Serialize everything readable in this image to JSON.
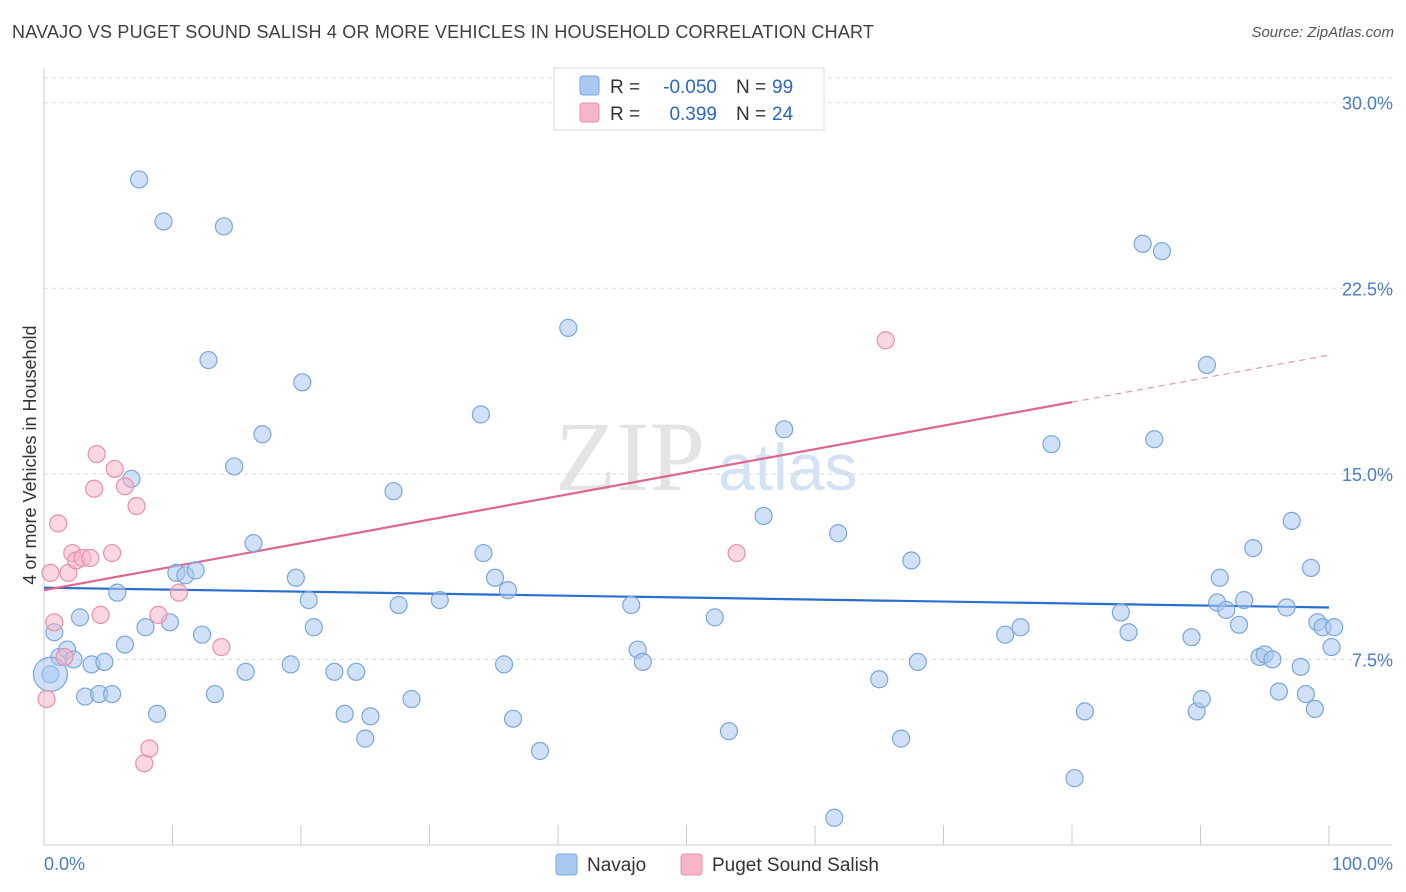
{
  "title": "NAVAJO VS PUGET SOUND SALISH 4 OR MORE VEHICLES IN HOUSEHOLD CORRELATION CHART",
  "source": "Source: ZipAtlas.com",
  "watermark": {
    "zip": "ZIP",
    "atlas": "atlas"
  },
  "colors": {
    "navajo_fill": "#a9c9f0",
    "navajo_stroke": "#7aa6dd",
    "navajo_line": "#2a6fd0",
    "salish_fill": "#f6b6c8",
    "salish_stroke": "#ea8fab",
    "salish_line": "#e0668f",
    "grid": "#dcdcdc",
    "tick_text": "#4a7cc7"
  },
  "legend": {
    "rows": [
      {
        "r_label": "R =",
        "r_value": "-0.050",
        "n_label": "N =",
        "n_value": "99"
      },
      {
        "r_label": "R =",
        "r_value": "0.399",
        "n_label": "N =",
        "n_value": "24"
      }
    ]
  },
  "chart_data": {
    "type": "scatter",
    "title": "NAVAJO VS PUGET SOUND SALISH 4 OR MORE VEHICLES IN HOUSEHOLD CORRELATION CHART",
    "xlabel": "",
    "ylabel": "4 or more Vehicles in Household",
    "xlim": [
      0,
      100
    ],
    "ylim": [
      0,
      31
    ],
    "x_tick_labels": [
      "0.0%",
      "100.0%"
    ],
    "y_ticks": [
      7.5,
      15.0,
      22.5,
      30.0
    ],
    "y_tick_labels": [
      "7.5%",
      "15.0%",
      "22.5%",
      "30.0%"
    ],
    "legend_position": "top-center",
    "series": [
      {
        "name": "Navajo",
        "r": -0.05,
        "n": 99,
        "trend": {
          "x0": 0,
          "y0": 10.4,
          "x1": 100,
          "y1": 9.6
        },
        "points": [
          [
            0.5,
            6.9
          ],
          [
            0.8,
            8.6
          ],
          [
            1.2,
            7.6
          ],
          [
            1.8,
            7.9
          ],
          [
            2.3,
            7.5
          ],
          [
            2.8,
            9.2
          ],
          [
            3.2,
            6.0
          ],
          [
            3.7,
            7.3
          ],
          [
            4.3,
            6.1
          ],
          [
            4.7,
            7.4
          ],
          [
            5.3,
            6.1
          ],
          [
            5.7,
            10.2
          ],
          [
            6.3,
            8.1
          ],
          [
            6.8,
            14.8
          ],
          [
            7.4,
            26.9
          ],
          [
            7.9,
            8.8
          ],
          [
            8.8,
            5.3
          ],
          [
            9.3,
            25.2
          ],
          [
            9.8,
            9.0
          ],
          [
            10.3,
            11.0
          ],
          [
            11.0,
            10.9
          ],
          [
            11.8,
            11.1
          ],
          [
            12.3,
            8.5
          ],
          [
            12.8,
            19.6
          ],
          [
            13.3,
            6.1
          ],
          [
            14.0,
            25.0
          ],
          [
            14.8,
            15.3
          ],
          [
            15.7,
            7.0
          ],
          [
            16.3,
            12.2
          ],
          [
            17.0,
            16.6
          ],
          [
            19.2,
            7.3
          ],
          [
            19.6,
            10.8
          ],
          [
            20.1,
            18.7
          ],
          [
            20.6,
            9.9
          ],
          [
            21.0,
            8.8
          ],
          [
            22.6,
            7.0
          ],
          [
            23.4,
            5.3
          ],
          [
            24.3,
            7.0
          ],
          [
            25.0,
            4.3
          ],
          [
            25.4,
            5.2
          ],
          [
            27.2,
            14.3
          ],
          [
            27.6,
            9.7
          ],
          [
            28.6,
            5.9
          ],
          [
            30.8,
            9.9
          ],
          [
            34.0,
            17.4
          ],
          [
            34.2,
            11.8
          ],
          [
            35.1,
            10.8
          ],
          [
            35.8,
            7.3
          ],
          [
            36.1,
            10.3
          ],
          [
            36.5,
            5.1
          ],
          [
            38.6,
            3.8
          ],
          [
            40.8,
            20.9
          ],
          [
            45.7,
            9.7
          ],
          [
            46.2,
            7.9
          ],
          [
            46.6,
            7.4
          ],
          [
            52.2,
            9.2
          ],
          [
            53.3,
            4.6
          ],
          [
            56.0,
            13.3
          ],
          [
            57.6,
            16.8
          ],
          [
            61.5,
            1.1
          ],
          [
            61.8,
            12.6
          ],
          [
            65.0,
            6.7
          ],
          [
            66.7,
            4.3
          ],
          [
            67.5,
            11.5
          ],
          [
            68.0,
            7.4
          ],
          [
            74.8,
            8.5
          ],
          [
            76.0,
            8.8
          ],
          [
            78.4,
            16.2
          ],
          [
            80.2,
            2.7
          ],
          [
            81.0,
            5.4
          ],
          [
            83.8,
            9.4
          ],
          [
            84.4,
            8.6
          ],
          [
            85.5,
            24.3
          ],
          [
            86.4,
            16.4
          ],
          [
            87.0,
            24.0
          ],
          [
            89.3,
            8.4
          ],
          [
            89.7,
            5.4
          ],
          [
            90.1,
            5.9
          ],
          [
            90.5,
            19.4
          ],
          [
            91.3,
            9.8
          ],
          [
            91.5,
            10.8
          ],
          [
            92.0,
            9.5
          ],
          [
            93.0,
            8.9
          ],
          [
            93.4,
            9.9
          ],
          [
            94.1,
            12.0
          ],
          [
            94.6,
            7.6
          ],
          [
            95.0,
            7.7
          ],
          [
            95.6,
            7.5
          ],
          [
            96.1,
            6.2
          ],
          [
            96.7,
            9.6
          ],
          [
            97.1,
            13.1
          ],
          [
            97.8,
            7.2
          ],
          [
            98.2,
            6.1
          ],
          [
            98.6,
            11.2
          ],
          [
            98.9,
            5.5
          ],
          [
            99.1,
            9.0
          ],
          [
            99.5,
            8.8
          ],
          [
            100.2,
            8.0
          ],
          [
            100.4,
            8.8
          ]
        ]
      },
      {
        "name": "Puget Sound Salish",
        "r": 0.399,
        "n": 24,
        "trend": {
          "x0": 0,
          "y0": 10.3,
          "x1": 80,
          "y1": 17.9,
          "dash_x1": 100,
          "dash_y1": 19.8
        },
        "points": [
          [
            0.2,
            5.9
          ],
          [
            0.5,
            11.0
          ],
          [
            0.8,
            9.0
          ],
          [
            1.1,
            13.0
          ],
          [
            1.6,
            7.6
          ],
          [
            1.9,
            11.0
          ],
          [
            2.2,
            11.8
          ],
          [
            2.5,
            11.5
          ],
          [
            3.0,
            11.6
          ],
          [
            3.6,
            11.6
          ],
          [
            3.9,
            14.4
          ],
          [
            4.1,
            15.8
          ],
          [
            4.4,
            9.3
          ],
          [
            5.3,
            11.8
          ],
          [
            5.5,
            15.2
          ],
          [
            6.3,
            14.5
          ],
          [
            7.2,
            13.7
          ],
          [
            7.8,
            3.3
          ],
          [
            8.2,
            3.9
          ],
          [
            8.9,
            9.3
          ],
          [
            10.5,
            10.2
          ],
          [
            13.8,
            8.0
          ],
          [
            53.9,
            11.8
          ],
          [
            65.5,
            20.4
          ]
        ]
      }
    ]
  }
}
